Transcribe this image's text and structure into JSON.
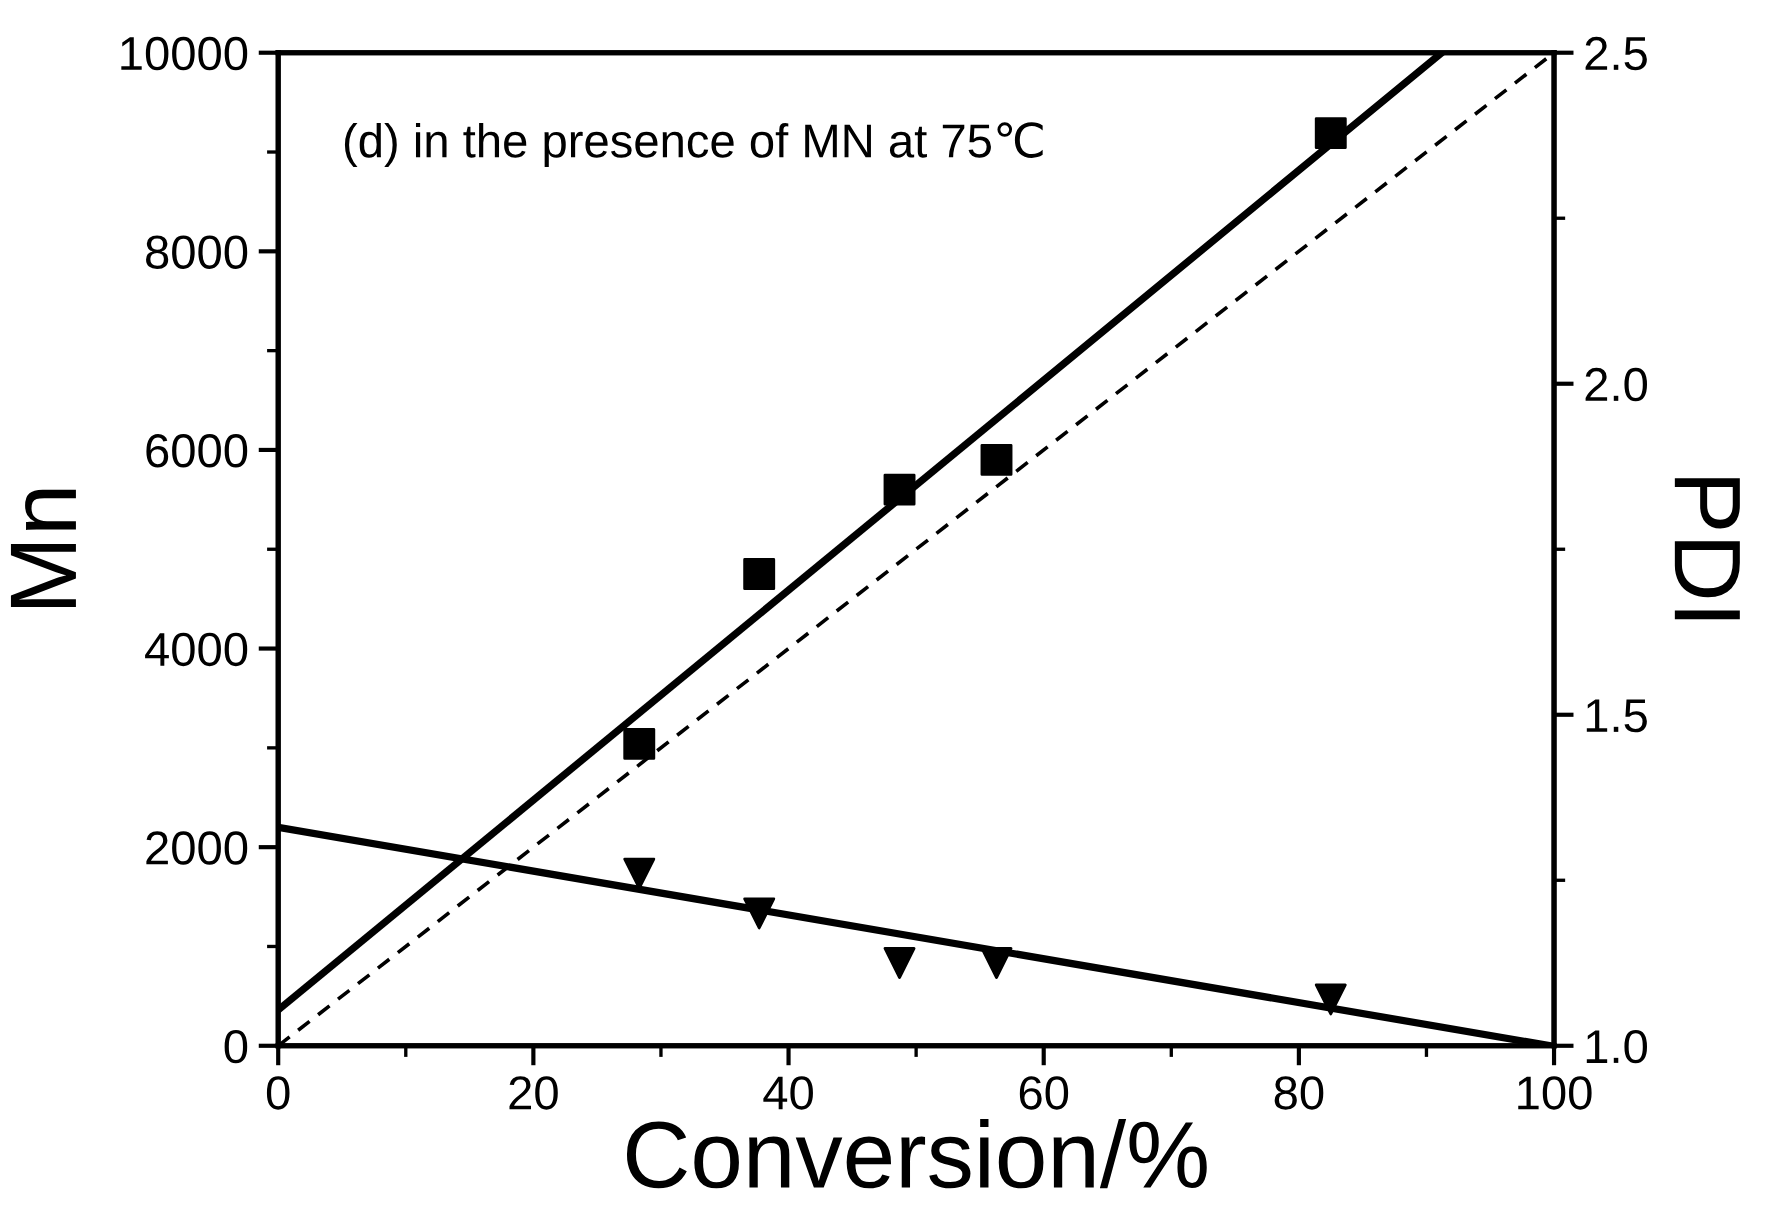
{
  "chart_data": {
    "type": "scatter",
    "xlabel": "Conversion/%",
    "ylabel": "Mn",
    "y2label": "PDI",
    "annotations": [
      "(d) in the presence of MN at 75℃"
    ],
    "xlim": [
      0,
      100
    ],
    "xticks": [
      0,
      20,
      40,
      60,
      80,
      100
    ],
    "ylim": [
      0,
      10000
    ],
    "yticks": [
      0,
      2000,
      4000,
      6000,
      8000,
      10000
    ],
    "y2lim": [
      1.0,
      2.5
    ],
    "y2ticks": [
      {
        "value": 1.0,
        "label": "1.0"
      },
      {
        "value": 1.5,
        "label": "1.5"
      },
      {
        "value": 2.0,
        "label": "2.0"
      },
      {
        "value": 2.5,
        "label": "2.5"
      }
    ],
    "grid": false,
    "legend": false,
    "series": [
      {
        "marker": "square",
        "color": "#000000",
        "x": [
          28.3,
          37.7,
          48.7,
          56.3,
          82.5
        ],
        "values": [
          3040,
          4750,
          5600,
          5900,
          9190
        ]
      },
      {
        "marker": "triangle",
        "color": "#000000",
        "axis": "y2",
        "x": [
          28.3,
          37.7,
          48.7,
          56.3,
          82.5
        ],
        "values": [
          1.26,
          1.2,
          1.125,
          1.125,
          1.07
        ]
      },
      {
        "type": "line",
        "marker": "none",
        "line_style": "solid",
        "color": "#000000",
        "x": [
          0,
          91.2
        ],
        "values": [
          360,
          10000
        ]
      },
      {
        "type": "line",
        "marker": "none",
        "line_style": "dashed",
        "color": "#000000",
        "x": [
          0,
          100
        ],
        "values": [
          0,
          10000
        ]
      },
      {
        "type": "line",
        "marker": "none",
        "line_style": "solid",
        "color": "#000000",
        "axis": "y2",
        "x": [
          0,
          99.7
        ],
        "values": [
          1.33,
          1.0
        ]
      }
    ]
  }
}
